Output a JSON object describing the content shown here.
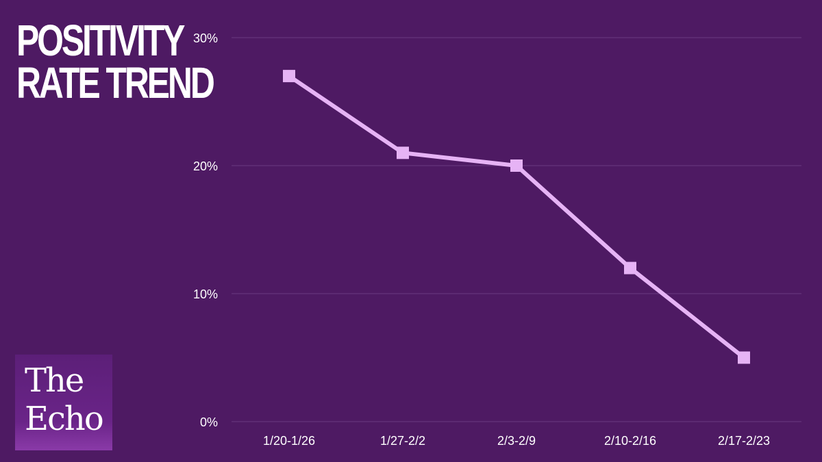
{
  "title_lines": [
    "POSITIVITY",
    "RATE TREND"
  ],
  "logo": {
    "line1": "The",
    "line2": "Echo"
  },
  "colors": {
    "background": "#4e1a63",
    "line": "#e6b3f5",
    "grid": "#6a3a80",
    "text": "#ffffff"
  },
  "chart_data": {
    "type": "line",
    "categories": [
      "1/20-1/26",
      "1/27-2/2",
      "2/3-2/9",
      "2/10-2/16",
      "2/17-2/23"
    ],
    "series": [
      {
        "values": [
          27,
          21,
          20,
          12,
          5
        ]
      }
    ],
    "y_ticks": [
      0,
      10,
      20,
      30
    ],
    "y_tick_labels": [
      "0%",
      "10%",
      "20%",
      "30%"
    ],
    "ylim": [
      0,
      30
    ],
    "grid": true,
    "marker": "square"
  }
}
